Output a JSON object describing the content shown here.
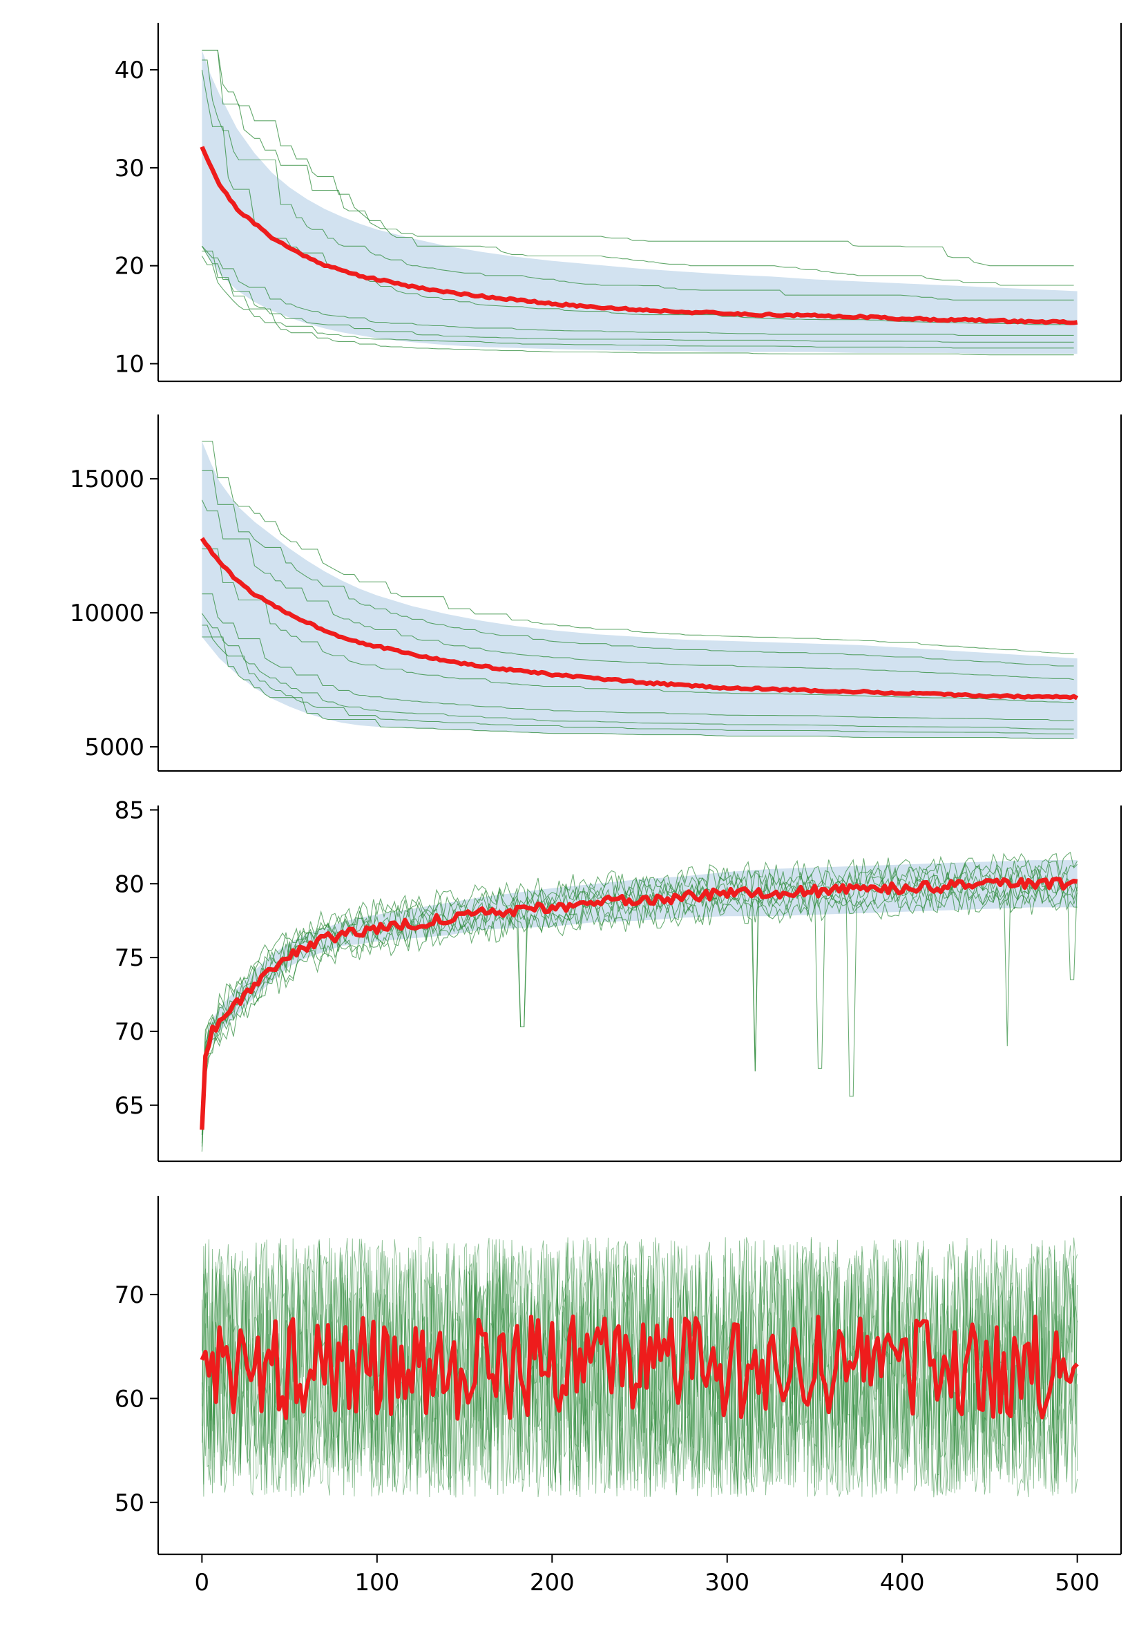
{
  "figure": {
    "colors": {
      "mean_line": "#ee1c1c",
      "runs": "#2e8b3a",
      "band": "#b7d0e6",
      "axes": "#000000"
    }
  },
  "chart_data": [
    {
      "type": "line",
      "title": "",
      "xlabel": "",
      "ylabel": "",
      "xlim": [
        -25,
        525
      ],
      "ylim": [
        8.2,
        44.8
      ],
      "x_ticks_shown": false,
      "y_ticks": [
        10,
        20,
        30,
        40
      ],
      "y_tick_labels": [
        "10",
        "20",
        "30",
        "40"
      ],
      "grid": false,
      "x": [
        0,
        5,
        10,
        20,
        30,
        40,
        50,
        60,
        70,
        80,
        90,
        100,
        120,
        140,
        160,
        180,
        200,
        225,
        250,
        275,
        300,
        325,
        350,
        375,
        400,
        425,
        450,
        475,
        500
      ],
      "mean": [
        32.2,
        30.2,
        28.3,
        25.8,
        24.3,
        22.9,
        21.8,
        20.9,
        20.1,
        19.5,
        19.0,
        18.6,
        17.9,
        17.3,
        16.9,
        16.5,
        16.1,
        15.8,
        15.5,
        15.3,
        15.1,
        15.0,
        14.9,
        14.8,
        14.6,
        14.5,
        14.4,
        14.3,
        14.2
      ],
      "band_upper": [
        42.0,
        39.5,
        37.5,
        34.0,
        31.5,
        29.5,
        28.0,
        26.8,
        25.8,
        25.0,
        24.3,
        23.7,
        22.8,
        22.0,
        21.4,
        20.9,
        20.5,
        20.1,
        19.7,
        19.4,
        19.1,
        18.9,
        18.6,
        18.4,
        18.2,
        18.0,
        17.8,
        17.6,
        17.4
      ],
      "band_lower": [
        22.0,
        20.5,
        19.2,
        17.5,
        16.3,
        15.4,
        14.7,
        14.1,
        13.6,
        13.2,
        12.9,
        12.6,
        12.2,
        11.9,
        11.7,
        11.6,
        11.5,
        11.4,
        11.3,
        11.3,
        11.2,
        11.2,
        11.2,
        11.1,
        11.1,
        11.1,
        11.0,
        11.0,
        11.0
      ],
      "series": [
        {
          "values": [
            42.0,
            40.5,
            39.0,
            36.5,
            34.8,
            33.0,
            31.5,
            30.0,
            28.5,
            27.0,
            25.5,
            24.0,
            23.0,
            23.0,
            23.0,
            23.0,
            23.0,
            23.0,
            22.5,
            22.5,
            22.5,
            22.5,
            22.5,
            22.0,
            22.0,
            21.0,
            20.0,
            20.0,
            20.0
          ]
        },
        {
          "values": [
            42.0,
            39.0,
            37.0,
            34.5,
            33.0,
            31.0,
            29.5,
            28.0,
            27.0,
            26.0,
            25.0,
            24.0,
            22.0,
            22.0,
            22.0,
            21.0,
            21.0,
            21.0,
            20.5,
            20.0,
            20.0,
            20.0,
            19.5,
            19.0,
            19.0,
            18.5,
            18.0,
            18.0,
            18.0
          ]
        },
        {
          "values": [
            41.0,
            37.5,
            34.5,
            31.0,
            29.0,
            27.0,
            25.5,
            24.0,
            23.0,
            22.0,
            22.0,
            21.0,
            20.0,
            19.5,
            19.0,
            19.0,
            18.5,
            18.0,
            18.0,
            17.5,
            17.5,
            17.0,
            17.0,
            17.0,
            17.0,
            16.5,
            16.5,
            16.5,
            16.5
          ]
        },
        {
          "values": [
            40.0,
            35.0,
            31.0,
            27.0,
            24.5,
            23.0,
            22.0,
            21.0,
            20.0,
            19.5,
            19.0,
            18.0,
            17.0,
            16.5,
            16.0,
            15.8,
            15.5,
            15.3,
            15.0,
            15.0,
            14.8,
            14.6,
            14.5,
            14.5,
            14.3,
            14.2,
            14.1,
            14.0,
            14.0
          ]
        },
        {
          "values": [
            22.0,
            21.0,
            20.0,
            18.5,
            17.5,
            16.5,
            16.0,
            15.5,
            15.0,
            14.8,
            14.5,
            14.2,
            14.0,
            13.8,
            13.6,
            13.5,
            13.4,
            13.3,
            13.2,
            13.2,
            13.1,
            13.0,
            13.0,
            13.0,
            13.0,
            12.9,
            12.9,
            12.9,
            12.9
          ]
        },
        {
          "values": [
            22.0,
            20.5,
            19.0,
            17.0,
            16.0,
            15.0,
            14.5,
            14.2,
            14.0,
            13.8,
            13.5,
            13.3,
            13.0,
            12.8,
            12.7,
            12.6,
            12.5,
            12.5,
            12.5,
            12.4,
            12.4,
            12.4,
            12.3,
            12.3,
            12.3,
            12.2,
            12.2,
            12.2,
            12.2
          ]
        },
        {
          "values": [
            21.5,
            20.0,
            18.5,
            16.5,
            15.2,
            14.3,
            13.7,
            13.3,
            13.0,
            12.8,
            12.6,
            12.5,
            12.4,
            12.3,
            12.2,
            12.0,
            12.0,
            11.9,
            11.9,
            11.8,
            11.8,
            11.8,
            11.7,
            11.7,
            11.7,
            11.6,
            11.6,
            11.6,
            11.6
          ]
        },
        {
          "values": [
            21.0,
            19.5,
            18.0,
            16.0,
            14.8,
            13.8,
            13.2,
            12.8,
            12.5,
            12.2,
            12.0,
            11.8,
            11.6,
            11.5,
            11.4,
            11.3,
            11.2,
            11.2,
            11.1,
            11.1,
            11.1,
            11.0,
            11.0,
            11.0,
            11.0,
            11.0,
            10.9,
            10.9,
            10.9
          ]
        }
      ]
    },
    {
      "type": "line",
      "title": "",
      "xlabel": "",
      "ylabel": "",
      "xlim": [
        -25,
        525
      ],
      "ylim": [
        4100,
        17400
      ],
      "x_ticks_shown": false,
      "y_ticks": [
        5000,
        10000,
        15000
      ],
      "y_tick_labels": [
        "5000",
        "10000",
        "15000"
      ],
      "grid": false,
      "x": [
        0,
        5,
        10,
        20,
        30,
        40,
        50,
        60,
        70,
        80,
        90,
        100,
        120,
        140,
        160,
        180,
        200,
        225,
        250,
        275,
        300,
        325,
        350,
        375,
        400,
        425,
        450,
        475,
        500
      ],
      "mean": [
        12800,
        12300,
        11900,
        11200,
        10700,
        10300,
        9950,
        9650,
        9350,
        9100,
        8900,
        8750,
        8450,
        8200,
        8000,
        7850,
        7700,
        7550,
        7400,
        7300,
        7200,
        7150,
        7100,
        7050,
        7000,
        6950,
        6900,
        6870,
        6850
      ],
      "band_upper": [
        16400,
        15600,
        14900,
        14000,
        13400,
        12900,
        12400,
        11950,
        11550,
        11200,
        10900,
        10650,
        10250,
        9950,
        9700,
        9500,
        9350,
        9200,
        9100,
        9000,
        8950,
        8900,
        8850,
        8800,
        8700,
        8600,
        8500,
        8400,
        8300
      ],
      "band_lower": [
        9100,
        8700,
        8300,
        7700,
        7200,
        6800,
        6500,
        6250,
        6050,
        5900,
        5800,
        5750,
        5700,
        5650,
        5600,
        5550,
        5500,
        5500,
        5450,
        5450,
        5400,
        5400,
        5400,
        5350,
        5350,
        5350,
        5350,
        5300,
        5300
      ]
    },
    {
      "type": "line",
      "title": "",
      "xlabel": "",
      "ylabel": "",
      "xlim": [
        -25,
        525
      ],
      "ylim": [
        61.2,
        85.3
      ],
      "x_ticks_shown": false,
      "y_ticks": [
        65,
        70,
        75,
        80,
        85
      ],
      "y_tick_labels": [
        "65",
        "70",
        "75",
        "80",
        "85"
      ],
      "grid": false,
      "x": [
        0,
        2,
        5,
        10,
        20,
        30,
        40,
        50,
        60,
        70,
        80,
        90,
        100,
        120,
        140,
        160,
        180,
        200,
        225,
        250,
        275,
        300,
        325,
        350,
        375,
        400,
        425,
        450,
        475,
        500
      ],
      "mean": [
        63.5,
        68.5,
        69.8,
        70.8,
        72.0,
        73.2,
        74.3,
        75.2,
        75.8,
        76.2,
        76.6,
        76.8,
        77.0,
        77.3,
        77.6,
        78.0,
        78.2,
        78.4,
        78.7,
        78.9,
        79.1,
        79.3,
        79.4,
        79.5,
        79.6,
        79.7,
        79.8,
        79.9,
        80.0,
        80.0
      ],
      "band_upper": [
        64.5,
        69.5,
        70.6,
        71.6,
        72.9,
        74.1,
        75.2,
        76.0,
        76.6,
        77.0,
        77.4,
        77.7,
        77.9,
        78.3,
        78.7,
        79.1,
        79.4,
        79.7,
        80.0,
        80.3,
        80.5,
        80.8,
        81.0,
        81.1,
        81.2,
        81.3,
        81.4,
        81.5,
        81.6,
        81.6
      ],
      "band_lower": [
        62.5,
        67.5,
        69.0,
        70.0,
        71.1,
        72.3,
        73.4,
        74.4,
        75.0,
        75.4,
        75.8,
        75.9,
        76.1,
        76.3,
        76.5,
        76.9,
        77.0,
        77.1,
        77.4,
        77.5,
        77.7,
        77.8,
        77.8,
        77.9,
        78.0,
        78.1,
        78.2,
        78.3,
        78.4,
        78.4
      ],
      "dips": [
        {
          "x": 183,
          "y": 70.3
        },
        {
          "x": 316,
          "y": 67.3
        },
        {
          "x": 353,
          "y": 67.5
        },
        {
          "x": 371,
          "y": 65.6
        },
        {
          "x": 460,
          "y": 69.0
        },
        {
          "x": 497,
          "y": 73.5
        }
      ]
    },
    {
      "type": "line",
      "title": "",
      "xlabel": "",
      "ylabel": "",
      "xlim": [
        -25,
        525
      ],
      "ylim": [
        45.0,
        79.5
      ],
      "x_ticks": [
        0,
        100,
        200,
        300,
        400,
        500
      ],
      "x_tick_labels": [
        "0",
        "100",
        "200",
        "300",
        "400",
        "500"
      ],
      "y_ticks": [
        50,
        60,
        70
      ],
      "y_tick_labels": [
        "50",
        "60",
        "70"
      ],
      "grid": false,
      "mean_level": 63.0,
      "mean_range": [
        55.8,
        68.2
      ],
      "runs_range": [
        46.5,
        77.8
      ],
      "run_count": 8
    }
  ]
}
